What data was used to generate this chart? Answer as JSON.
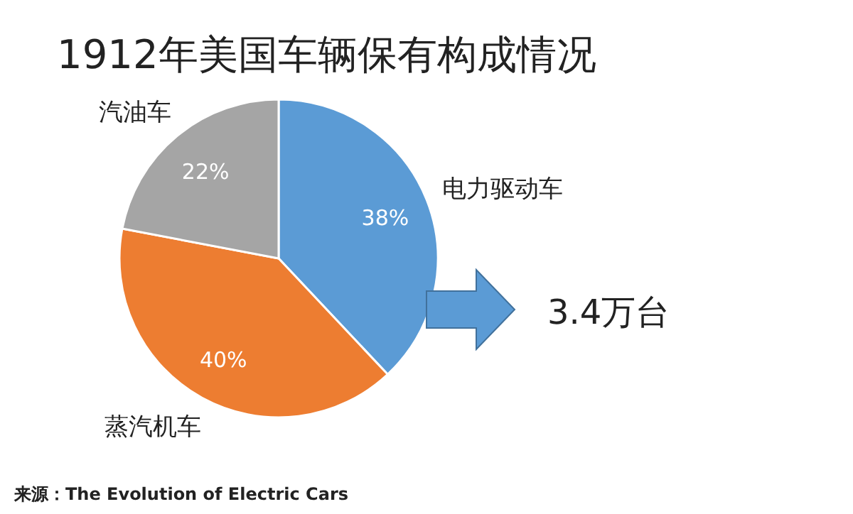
{
  "chart_data": {
    "type": "pie",
    "title": "1912年美国车辆保有构成情况",
    "categories": [
      "电力驱动车",
      "蒸汽机车",
      "汽油车"
    ],
    "values": [
      38,
      40,
      22
    ],
    "colors": [
      "#5b9bd5",
      "#ed7d31",
      "#a5a5a5"
    ],
    "value_labels": [
      "38%",
      "40%",
      "22%"
    ],
    "annotations": [
      "3.4万台",
      "来源：The Evolution of Electric Cars"
    ]
  }
}
